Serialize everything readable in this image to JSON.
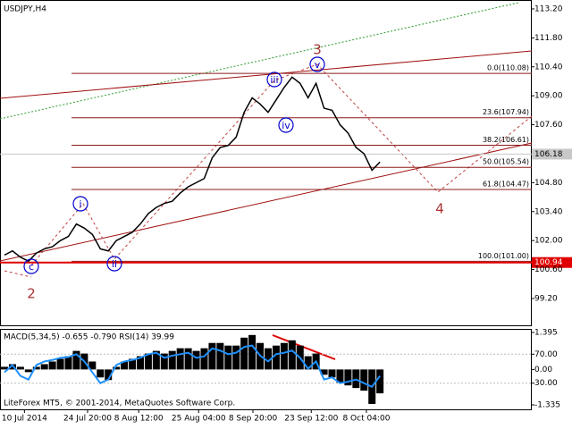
{
  "chart_data": [
    {
      "type": "line",
      "title": "USDJPY,H4",
      "color": "#000000",
      "xlim": [
        0,
        66
      ],
      "ylim": [
        97.86,
        113.63
      ],
      "xticks": [
        {
          "value": 2.5,
          "label": "10 Jul 2014"
        },
        {
          "value": 10.4,
          "label": "24 Jul 20:00"
        },
        {
          "value": 16.8,
          "label": "8 Aug 12:00"
        },
        {
          "value": 24.3,
          "label": "25 Aug 04:00"
        },
        {
          "value": 31.1,
          "label": "8 Sep 20:00"
        },
        {
          "value": 38.4,
          "label": "23 Sep 12:00"
        },
        {
          "value": 45.3,
          "label": "8 Oct 04:00"
        }
      ],
      "yticks": [
        {
          "value": 113.2,
          "label": "113.20"
        },
        {
          "value": 111.8,
          "label": "111.80"
        },
        {
          "value": 110.4,
          "label": "110.40"
        },
        {
          "value": 109,
          "label": "109.00"
        },
        {
          "value": 107.6,
          "label": "107.60"
        },
        {
          "value": 104.8,
          "label": "104.80"
        },
        {
          "value": 103.4,
          "label": "103.40"
        },
        {
          "value": 102,
          "label": "102.00"
        },
        {
          "value": 100.6,
          "label": "100.60"
        },
        {
          "value": 99.2,
          "label": "99.20"
        }
      ],
      "last_price": 106.18,
      "support_level": {
        "value": 100.94,
        "label": "100.94"
      },
      "fib_levels": [
        {
          "value": 110.08,
          "label": "0.0(110.08)"
        },
        {
          "value": 107.94,
          "label": "23.6(107.94)"
        },
        {
          "value": 106.61,
          "label": "38.2(106.61)"
        },
        {
          "value": 105.54,
          "label": "50.0(105.54)"
        },
        {
          "value": 104.47,
          "label": "61.8(104.47)"
        },
        {
          "value": 101.0,
          "label": "100.0(101.00)"
        }
      ],
      "wave_labels": [
        "3",
        "v",
        "iii",
        "iv",
        "i",
        "c",
        "ii",
        "2",
        "4"
      ],
      "values": [
        101.3,
        101.5,
        101.2,
        101.0,
        101.4,
        101.6,
        101.7,
        102.0,
        102.2,
        102.8,
        102.6,
        102.3,
        101.6,
        101.5,
        102.0,
        102.2,
        102.4,
        102.8,
        103.3,
        103.6,
        103.8,
        103.9,
        104.3,
        104.6,
        104.8,
        105.0,
        106.0,
        106.5,
        106.6,
        107.0,
        108.2,
        108.9,
        108.6,
        108.2,
        108.8,
        109.4,
        109.9,
        109.6,
        108.9,
        109.6,
        108.4,
        108.3,
        107.6,
        107.2,
        106.5,
        106.2,
        105.4,
        105.8
      ]
    },
    {
      "type": "macd",
      "title": "MACD(5,34,5) -0.655 -0.790 RSI(14) 39.99",
      "xlim": [
        0,
        66
      ],
      "ylim": [
        -1.335,
        1.395
      ],
      "y2lim": [
        0,
        100
      ],
      "yticks": [
        1.395,
        {
          "value": 0,
          "label": "0.00"
        },
        -1.335
      ],
      "y2ticks": [
        {
          "value": 70,
          "label": "70.00"
        },
        {
          "value": 30,
          "label": "30.00"
        }
      ],
      "series": [
        {
          "name": "MACD",
          "color": "#000000",
          "values": [
            0.1,
            0.2,
            0.1,
            -0.1,
            0.1,
            0.2,
            0.3,
            0.4,
            0.5,
            0.7,
            0.6,
            0.3,
            -0.3,
            -0.4,
            0.1,
            0.3,
            0.4,
            0.5,
            0.6,
            0.7,
            0.6,
            0.7,
            0.8,
            0.8,
            0.7,
            0.8,
            1.0,
            1.0,
            0.9,
            0.9,
            1.2,
            1.3,
            1.0,
            0.8,
            0.9,
            1.0,
            1.1,
            0.9,
            0.5,
            0.6,
            -0.2,
            -0.3,
            -0.5,
            -0.6,
            -0.7,
            -0.8,
            -1.3,
            -0.9
          ]
        },
        {
          "name": "RSI",
          "color": "#1e90ff",
          "axis": "y2",
          "values": [
            45,
            55,
            40,
            35,
            55,
            60,
            62,
            65,
            66,
            70,
            60,
            45,
            30,
            35,
            55,
            60,
            62,
            65,
            70,
            72,
            65,
            68,
            70,
            72,
            65,
            67,
            78,
            75,
            70,
            72,
            80,
            82,
            68,
            60,
            70,
            72,
            75,
            65,
            50,
            60,
            35,
            38,
            30,
            32,
            35,
            30,
            25,
            40
          ]
        }
      ]
    }
  ],
  "footer": "LiteForex MT5, © 2001-2014, MetaQuotes Software Corp."
}
